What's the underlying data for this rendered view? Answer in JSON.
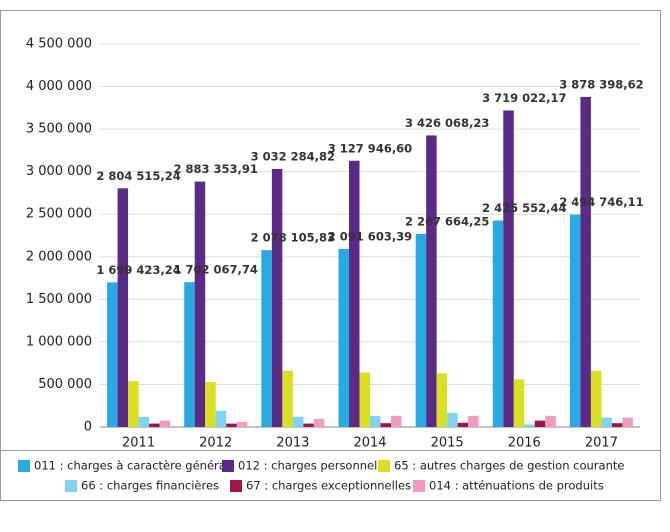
{
  "chart_data": {
    "type": "bar",
    "categories": [
      "2011",
      "2012",
      "2013",
      "2014",
      "2015",
      "2016",
      "2017"
    ],
    "series": [
      {
        "name": "011 : charges à caractère général",
        "color": "#29a9e1",
        "values": [
          1699423.24,
          1702067.74,
          2078105.83,
          2091603.39,
          2267664.25,
          2425552.44,
          2494746.11
        ],
        "value_labels": [
          "1 699 423,24",
          "1 702 067,74",
          "2 078 105,83",
          "2 091 603,39",
          "2 267 664,25",
          "2 425 552,44",
          "2 494 746,11"
        ]
      },
      {
        "name": "012 : charges personnel",
        "color": "#5b2a86",
        "values": [
          2804515.24,
          2883353.91,
          3032284.82,
          3127946.6,
          3426068.23,
          3719022.17,
          3878398.62
        ],
        "value_labels": [
          "2 804 515,24",
          "2 883 353,91",
          "3 032 284,82",
          "3 127 946,60",
          "3 426 068,23",
          "3 719 022,17",
          "3 878 398,62"
        ]
      },
      {
        "name": "65 : autres charges de gestion courante",
        "color": "#d9e021",
        "values": [
          540000,
          530000,
          660000,
          640000,
          630000,
          560000,
          660000
        ]
      },
      {
        "name": "66 : charges financières",
        "color": "#7dd3f0",
        "values": [
          120000,
          190000,
          120000,
          130000,
          165000,
          30000,
          110000
        ]
      },
      {
        "name": "67 : charges exceptionnelles",
        "color": "#a0144a",
        "values": [
          40000,
          40000,
          40000,
          45000,
          50000,
          75000,
          45000
        ]
      },
      {
        "name": "014 : atténuations de produits",
        "color": "#f29ac1",
        "values": [
          75000,
          60000,
          95000,
          130000,
          130000,
          130000,
          110000
        ]
      }
    ],
    "ylim": [
      0,
      4500000
    ],
    "yticks": [
      0,
      {
        "value": 500000,
        "label": "500 000"
      },
      {
        "value": 1000000,
        "label": "1 000 000"
      },
      {
        "value": 1500000,
        "label": "1 500 000"
      },
      {
        "value": 2000000,
        "label": "2 000 000"
      },
      {
        "value": 2500000,
        "label": "2 500 000"
      },
      {
        "value": 3000000,
        "label": "3 000 000"
      },
      {
        "value": 3500000,
        "label": "3 500 000"
      },
      {
        "value": 4000000,
        "label": "4 000 000"
      },
      {
        "value": 4500000,
        "label": "4 500 000"
      }
    ],
    "grid": true
  }
}
